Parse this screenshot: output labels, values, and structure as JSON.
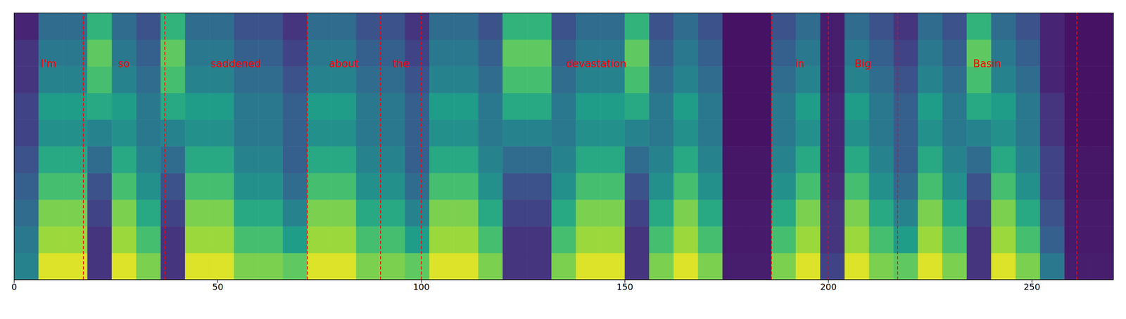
{
  "chart_data": {
    "type": "heatmap",
    "xlim": [
      0,
      270
    ],
    "xticks": [
      0,
      50,
      100,
      150,
      200,
      250
    ],
    "ylim": [
      0,
      80
    ],
    "tick_labels": "x",
    "color": "#ff0000",
    "words": [
      {
        "text": "I'm",
        "start": 0,
        "end": 17
      },
      {
        "text": "so",
        "start": 17,
        "end": 37
      },
      {
        "text": "saddened",
        "start": 37,
        "end": 72
      },
      {
        "text": "about",
        "start": 72,
        "end": 90
      },
      {
        "text": "the",
        "start": 90,
        "end": 100
      },
      {
        "text": "devastation",
        "start": 100,
        "end": 186
      },
      {
        "text": "in",
        "start": 186,
        "end": 200
      },
      {
        "text": "Big",
        "start": 200,
        "end": 217
      },
      {
        "text": "Basin",
        "start": 217,
        "end": 261
      }
    ],
    "cells": [
      [
        0.45,
        0.95,
        0.95,
        0.15,
        0.95,
        0.8,
        0.15,
        0.95,
        0.95,
        0.8,
        0.8,
        0.75,
        0.95,
        0.95,
        0.8,
        0.8,
        0.75,
        0.95,
        0.95,
        0.8,
        0.15,
        0.15,
        0.8,
        0.95,
        0.95,
        0.15,
        0.8,
        0.95,
        0.8,
        0.08,
        0.08,
        0.8,
        0.95,
        0.2,
        0.95,
        0.8,
        0.75,
        0.95,
        0.8,
        0.15,
        0.95,
        0.8,
        0.4,
        0.08,
        0.08
      ],
      [
        0.4,
        0.85,
        0.85,
        0.15,
        0.85,
        0.7,
        0.15,
        0.85,
        0.85,
        0.7,
        0.7,
        0.55,
        0.85,
        0.85,
        0.7,
        0.7,
        0.55,
        0.85,
        0.85,
        0.7,
        0.15,
        0.15,
        0.7,
        0.85,
        0.85,
        0.15,
        0.7,
        0.85,
        0.7,
        0.07,
        0.07,
        0.7,
        0.85,
        0.15,
        0.85,
        0.7,
        0.55,
        0.85,
        0.7,
        0.15,
        0.85,
        0.7,
        0.3,
        0.07,
        0.07
      ],
      [
        0.35,
        0.8,
        0.8,
        0.2,
        0.8,
        0.6,
        0.2,
        0.8,
        0.8,
        0.6,
        0.6,
        0.45,
        0.8,
        0.8,
        0.6,
        0.6,
        0.45,
        0.8,
        0.8,
        0.6,
        0.2,
        0.2,
        0.6,
        0.8,
        0.8,
        0.2,
        0.6,
        0.8,
        0.6,
        0.07,
        0.07,
        0.6,
        0.8,
        0.15,
        0.8,
        0.6,
        0.45,
        0.8,
        0.6,
        0.2,
        0.8,
        0.6,
        0.25,
        0.07,
        0.07
      ],
      [
        0.3,
        0.7,
        0.7,
        0.25,
        0.7,
        0.5,
        0.25,
        0.7,
        0.7,
        0.5,
        0.5,
        0.35,
        0.7,
        0.7,
        0.5,
        0.5,
        0.35,
        0.7,
        0.7,
        0.5,
        0.25,
        0.25,
        0.5,
        0.7,
        0.7,
        0.25,
        0.5,
        0.7,
        0.5,
        0.06,
        0.06,
        0.5,
        0.7,
        0.12,
        0.7,
        0.5,
        0.35,
        0.7,
        0.5,
        0.25,
        0.7,
        0.5,
        0.2,
        0.06,
        0.06
      ],
      [
        0.25,
        0.6,
        0.6,
        0.35,
        0.6,
        0.45,
        0.35,
        0.6,
        0.6,
        0.45,
        0.45,
        0.3,
        0.6,
        0.6,
        0.45,
        0.45,
        0.3,
        0.6,
        0.6,
        0.45,
        0.35,
        0.35,
        0.45,
        0.6,
        0.6,
        0.35,
        0.45,
        0.6,
        0.45,
        0.06,
        0.06,
        0.45,
        0.6,
        0.1,
        0.6,
        0.45,
        0.3,
        0.6,
        0.45,
        0.35,
        0.6,
        0.45,
        0.2,
        0.06,
        0.06
      ],
      [
        0.2,
        0.5,
        0.5,
        0.45,
        0.5,
        0.4,
        0.45,
        0.5,
        0.5,
        0.4,
        0.4,
        0.3,
        0.5,
        0.5,
        0.4,
        0.4,
        0.3,
        0.5,
        0.5,
        0.4,
        0.45,
        0.45,
        0.4,
        0.5,
        0.5,
        0.45,
        0.4,
        0.5,
        0.4,
        0.05,
        0.05,
        0.4,
        0.5,
        0.1,
        0.5,
        0.4,
        0.3,
        0.5,
        0.4,
        0.45,
        0.5,
        0.4,
        0.15,
        0.05,
        0.05
      ],
      [
        0.2,
        0.55,
        0.55,
        0.6,
        0.55,
        0.4,
        0.6,
        0.55,
        0.55,
        0.4,
        0.4,
        0.3,
        0.55,
        0.55,
        0.4,
        0.4,
        0.3,
        0.55,
        0.55,
        0.4,
        0.6,
        0.6,
        0.4,
        0.55,
        0.55,
        0.6,
        0.4,
        0.55,
        0.4,
        0.05,
        0.05,
        0.4,
        0.55,
        0.1,
        0.55,
        0.4,
        0.3,
        0.55,
        0.4,
        0.6,
        0.55,
        0.4,
        0.15,
        0.05,
        0.05
      ],
      [
        0.15,
        0.45,
        0.45,
        0.7,
        0.45,
        0.35,
        0.7,
        0.45,
        0.45,
        0.35,
        0.35,
        0.25,
        0.45,
        0.45,
        0.35,
        0.35,
        0.25,
        0.45,
        0.45,
        0.35,
        0.7,
        0.7,
        0.35,
        0.45,
        0.45,
        0.7,
        0.35,
        0.45,
        0.35,
        0.05,
        0.05,
        0.35,
        0.45,
        0.08,
        0.45,
        0.35,
        0.25,
        0.45,
        0.35,
        0.7,
        0.45,
        0.35,
        0.1,
        0.05,
        0.05
      ],
      [
        0.15,
        0.4,
        0.4,
        0.75,
        0.4,
        0.3,
        0.75,
        0.4,
        0.4,
        0.3,
        0.3,
        0.2,
        0.4,
        0.4,
        0.3,
        0.3,
        0.2,
        0.4,
        0.4,
        0.3,
        0.75,
        0.75,
        0.3,
        0.4,
        0.4,
        0.75,
        0.3,
        0.4,
        0.3,
        0.05,
        0.05,
        0.3,
        0.4,
        0.08,
        0.4,
        0.3,
        0.2,
        0.4,
        0.3,
        0.75,
        0.4,
        0.3,
        0.1,
        0.05,
        0.05
      ],
      [
        0.1,
        0.35,
        0.35,
        0.65,
        0.35,
        0.25,
        0.65,
        0.35,
        0.35,
        0.25,
        0.25,
        0.15,
        0.35,
        0.35,
        0.25,
        0.25,
        0.15,
        0.35,
        0.35,
        0.25,
        0.65,
        0.65,
        0.25,
        0.35,
        0.35,
        0.65,
        0.25,
        0.35,
        0.25,
        0.05,
        0.05,
        0.25,
        0.35,
        0.08,
        0.35,
        0.25,
        0.15,
        0.35,
        0.25,
        0.65,
        0.35,
        0.25,
        0.1,
        0.05,
        0.05
      ]
    ]
  }
}
